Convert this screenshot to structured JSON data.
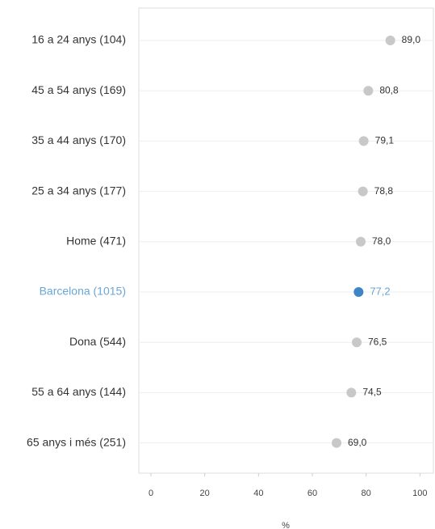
{
  "chart_data": {
    "type": "dot",
    "categories": [
      "16 a 24 anys (104)",
      "45 a 54 anys (169)",
      "35 a 44 anys (170)",
      "25 a 34 anys (177)",
      "Home (471)",
      "Barcelona (1015)",
      "Dona (544)",
      "55 a 64 anys (144)",
      "65 anys i més (251)"
    ],
    "values": [
      89.0,
      80.8,
      79.1,
      78.8,
      78.0,
      77.2,
      76.5,
      74.5,
      69.0
    ],
    "value_labels": [
      "89,0",
      "80,8",
      "79,1",
      "78,8",
      "78,0",
      "77,2",
      "76,5",
      "74,5",
      "69,0"
    ],
    "colors": [
      "#c8c8c8",
      "#c8c8c8",
      "#c8c8c8",
      "#c8c8c8",
      "#c8c8c8",
      "#3d85c6",
      "#c8c8c8",
      "#c8c8c8",
      "#c8c8c8"
    ],
    "x_label": "%",
    "xlim": [
      -4.5,
      105
    ],
    "xticks": [
      0,
      20,
      40,
      60,
      80,
      100
    ],
    "grid": true
  }
}
